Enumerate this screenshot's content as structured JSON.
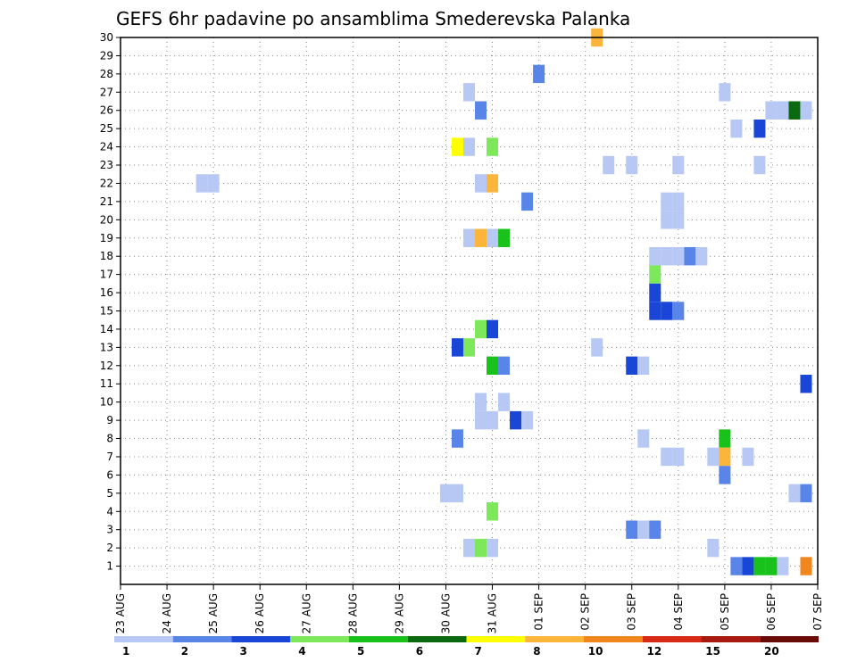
{
  "chart_data": {
    "type": "heatmap",
    "title": "GEFS 6hr padavine po ansamblima Smederevska Palanka",
    "xlabel": "",
    "ylabel": "",
    "x_tick_labels": [
      "23 AUG",
      "24 AUG",
      "25 AUG",
      "26 AUG",
      "27 AUG",
      "28 AUG",
      "29 AUG",
      "30 AUG",
      "31 AUG",
      "01 SEP",
      "02 SEP",
      "03 SEP",
      "04 SEP",
      "05 SEP",
      "06 SEP",
      "07 SEP"
    ],
    "y_tick_labels": [
      "1",
      "2",
      "3",
      "4",
      "5",
      "6",
      "7",
      "8",
      "9",
      "10",
      "11",
      "12",
      "13",
      "14",
      "15",
      "16",
      "17",
      "18",
      "19",
      "20",
      "21",
      "22",
      "23",
      "24",
      "25",
      "26",
      "27",
      "28",
      "29",
      "30"
    ],
    "x_range_days": [
      0,
      15
    ],
    "y_range_members": [
      0,
      30
    ],
    "grid": "dotted",
    "colorbar": {
      "placement": "bottom",
      "levels": [
        "1",
        "2",
        "3",
        "4",
        "5",
        "6",
        "7",
        "8",
        "10",
        "12",
        "15",
        "20"
      ],
      "colors": [
        "#b8c8f5",
        "#5a85e8",
        "#1a46d8",
        "#7de85a",
        "#19c21a",
        "#0b690f",
        "#ffff00",
        "#fbb53a",
        "#f0861c",
        "#d92a17",
        "#a81a10",
        "#6b0b08"
      ]
    },
    "cells": [
      {
        "member": 30,
        "step": 41,
        "cat": 7
      },
      {
        "member": 28,
        "step": 36,
        "cat": 1
      },
      {
        "member": 27,
        "step": 30,
        "cat": 0
      },
      {
        "member": 27,
        "step": 52,
        "cat": 0
      },
      {
        "member": 26,
        "step": 31,
        "cat": 1
      },
      {
        "member": 26,
        "step": 56,
        "cat": 0
      },
      {
        "member": 26,
        "step": 57,
        "cat": 0
      },
      {
        "member": 26,
        "step": 58,
        "cat": 5
      },
      {
        "member": 26,
        "step": 59,
        "cat": 0
      },
      {
        "member": 25,
        "step": 53,
        "cat": 0
      },
      {
        "member": 25,
        "step": 55,
        "cat": 2
      },
      {
        "member": 24,
        "step": 29,
        "cat": 6
      },
      {
        "member": 24,
        "step": 30,
        "cat": 0
      },
      {
        "member": 24,
        "step": 32,
        "cat": 3
      },
      {
        "member": 23,
        "step": 42,
        "cat": 0
      },
      {
        "member": 23,
        "step": 44,
        "cat": 0
      },
      {
        "member": 23,
        "step": 48,
        "cat": 0
      },
      {
        "member": 23,
        "step": 55,
        "cat": 0
      },
      {
        "member": 22,
        "step": 7,
        "cat": 0
      },
      {
        "member": 22,
        "step": 8,
        "cat": 0
      },
      {
        "member": 22,
        "step": 31,
        "cat": 0
      },
      {
        "member": 22,
        "step": 32,
        "cat": 7
      },
      {
        "member": 21,
        "step": 35,
        "cat": 1
      },
      {
        "member": 21,
        "step": 47,
        "cat": 0
      },
      {
        "member": 21,
        "step": 48,
        "cat": 0
      },
      {
        "member": 20,
        "step": 47,
        "cat": 0
      },
      {
        "member": 20,
        "step": 48,
        "cat": 0
      },
      {
        "member": 19,
        "step": 30,
        "cat": 0
      },
      {
        "member": 19,
        "step": 31,
        "cat": 7
      },
      {
        "member": 19,
        "step": 32,
        "cat": 0
      },
      {
        "member": 19,
        "step": 33,
        "cat": 4
      },
      {
        "member": 18,
        "step": 46,
        "cat": 0
      },
      {
        "member": 18,
        "step": 47,
        "cat": 0
      },
      {
        "member": 18,
        "step": 48,
        "cat": 0
      },
      {
        "member": 18,
        "step": 49,
        "cat": 1
      },
      {
        "member": 18,
        "step": 50,
        "cat": 0
      },
      {
        "member": 17,
        "step": 46,
        "cat": 3
      },
      {
        "member": 16,
        "step": 46,
        "cat": 2
      },
      {
        "member": 15,
        "step": 46,
        "cat": 2
      },
      {
        "member": 15,
        "step": 47,
        "cat": 2
      },
      {
        "member": 15,
        "step": 48,
        "cat": 1
      },
      {
        "member": 14,
        "step": 31,
        "cat": 3
      },
      {
        "member": 14,
        "step": 32,
        "cat": 2
      },
      {
        "member": 13,
        "step": 29,
        "cat": 2
      },
      {
        "member": 13,
        "step": 30,
        "cat": 3
      },
      {
        "member": 13,
        "step": 41,
        "cat": 0
      },
      {
        "member": 12,
        "step": 32,
        "cat": 4
      },
      {
        "member": 12,
        "step": 33,
        "cat": 1
      },
      {
        "member": 12,
        "step": 44,
        "cat": 2
      },
      {
        "member": 12,
        "step": 45,
        "cat": 0
      },
      {
        "member": 11,
        "step": 59,
        "cat": 2
      },
      {
        "member": 10,
        "step": 31,
        "cat": 0
      },
      {
        "member": 10,
        "step": 33,
        "cat": 0
      },
      {
        "member": 9,
        "step": 31,
        "cat": 0
      },
      {
        "member": 9,
        "step": 32,
        "cat": 0
      },
      {
        "member": 9,
        "step": 34,
        "cat": 2
      },
      {
        "member": 9,
        "step": 35,
        "cat": 0
      },
      {
        "member": 8,
        "step": 29,
        "cat": 1
      },
      {
        "member": 8,
        "step": 45,
        "cat": 0
      },
      {
        "member": 8,
        "step": 52,
        "cat": 4
      },
      {
        "member": 7,
        "step": 47,
        "cat": 0
      },
      {
        "member": 7,
        "step": 48,
        "cat": 0
      },
      {
        "member": 7,
        "step": 51,
        "cat": 0
      },
      {
        "member": 7,
        "step": 52,
        "cat": 7
      },
      {
        "member": 7,
        "step": 54,
        "cat": 0
      },
      {
        "member": 6,
        "step": 52,
        "cat": 1
      },
      {
        "member": 5,
        "step": 28,
        "cat": 0
      },
      {
        "member": 5,
        "step": 29,
        "cat": 0
      },
      {
        "member": 5,
        "step": 58,
        "cat": 0
      },
      {
        "member": 5,
        "step": 59,
        "cat": 1
      },
      {
        "member": 4,
        "step": 32,
        "cat": 3
      },
      {
        "member": 3,
        "step": 44,
        "cat": 1
      },
      {
        "member": 3,
        "step": 45,
        "cat": 0
      },
      {
        "member": 3,
        "step": 46,
        "cat": 1
      },
      {
        "member": 2,
        "step": 30,
        "cat": 0
      },
      {
        "member": 2,
        "step": 31,
        "cat": 3
      },
      {
        "member": 2,
        "step": 32,
        "cat": 0
      },
      {
        "member": 2,
        "step": 51,
        "cat": 0
      },
      {
        "member": 1,
        "step": 53,
        "cat": 1
      },
      {
        "member": 1,
        "step": 54,
        "cat": 2
      },
      {
        "member": 1,
        "step": 55,
        "cat": 4
      },
      {
        "member": 1,
        "step": 56,
        "cat": 4
      },
      {
        "member": 1,
        "step": 57,
        "cat": 0
      },
      {
        "member": 1,
        "step": 59,
        "cat": 8
      }
    ]
  }
}
